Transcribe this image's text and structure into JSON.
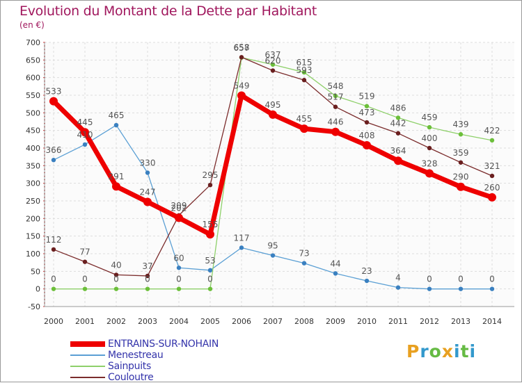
{
  "title": "Evolution du Montant de la Dette par Habitant",
  "subtitle": "(en €)",
  "logo_letters": [
    "P",
    "r",
    "o",
    "x",
    "i",
    "t",
    "i"
  ],
  "logo_colors": [
    "#e8a020",
    "#3399cc",
    "#66bb44",
    "#e8a020",
    "#3399cc",
    "#66bb44",
    "#3399cc"
  ],
  "chart_data": {
    "type": "line",
    "title": "Evolution du Montant de la Dette par Habitant",
    "ylabel": "(en €)",
    "ylim": [
      -50,
      700
    ],
    "yticks": [
      -50,
      0,
      50,
      100,
      150,
      200,
      250,
      300,
      350,
      400,
      450,
      500,
      550,
      600,
      650,
      700
    ],
    "grid": true,
    "x": [
      "2000",
      "2001",
      "2002",
      "2003",
      "2004",
      "2005",
      "2006",
      "2007",
      "2008",
      "2009",
      "2010",
      "2011",
      "2012",
      "2013",
      "2014"
    ],
    "series": [
      {
        "name": "ENTRAINS-SUR-NOHAIN",
        "color": "#ee0000",
        "values": [
          533,
          445,
          291,
          247,
          202,
          155,
          549,
          495,
          455,
          446,
          408,
          364,
          328,
          290,
          260
        ]
      },
      {
        "name": "Menestreau",
        "color": "#5a9fd4",
        "marker": "#3a80c0",
        "values": [
          366,
          410,
          465,
          330,
          60,
          53,
          117,
          95,
          73,
          44,
          23,
          4,
          0,
          0,
          0
        ]
      },
      {
        "name": "Sainpuits",
        "color": "#8ed06a",
        "marker": "#6cbf3a",
        "values": [
          0,
          0,
          0,
          0,
          0,
          0,
          657,
          637,
          615,
          548,
          519,
          486,
          459,
          439,
          422
        ]
      },
      {
        "name": "Couloutre",
        "color": "#7b2c2c",
        "marker": "#6a1f1f",
        "values": [
          112,
          77,
          40,
          37,
          209,
          295,
          658,
          620,
          593,
          517,
          473,
          442,
          400,
          359,
          321
        ]
      }
    ]
  }
}
